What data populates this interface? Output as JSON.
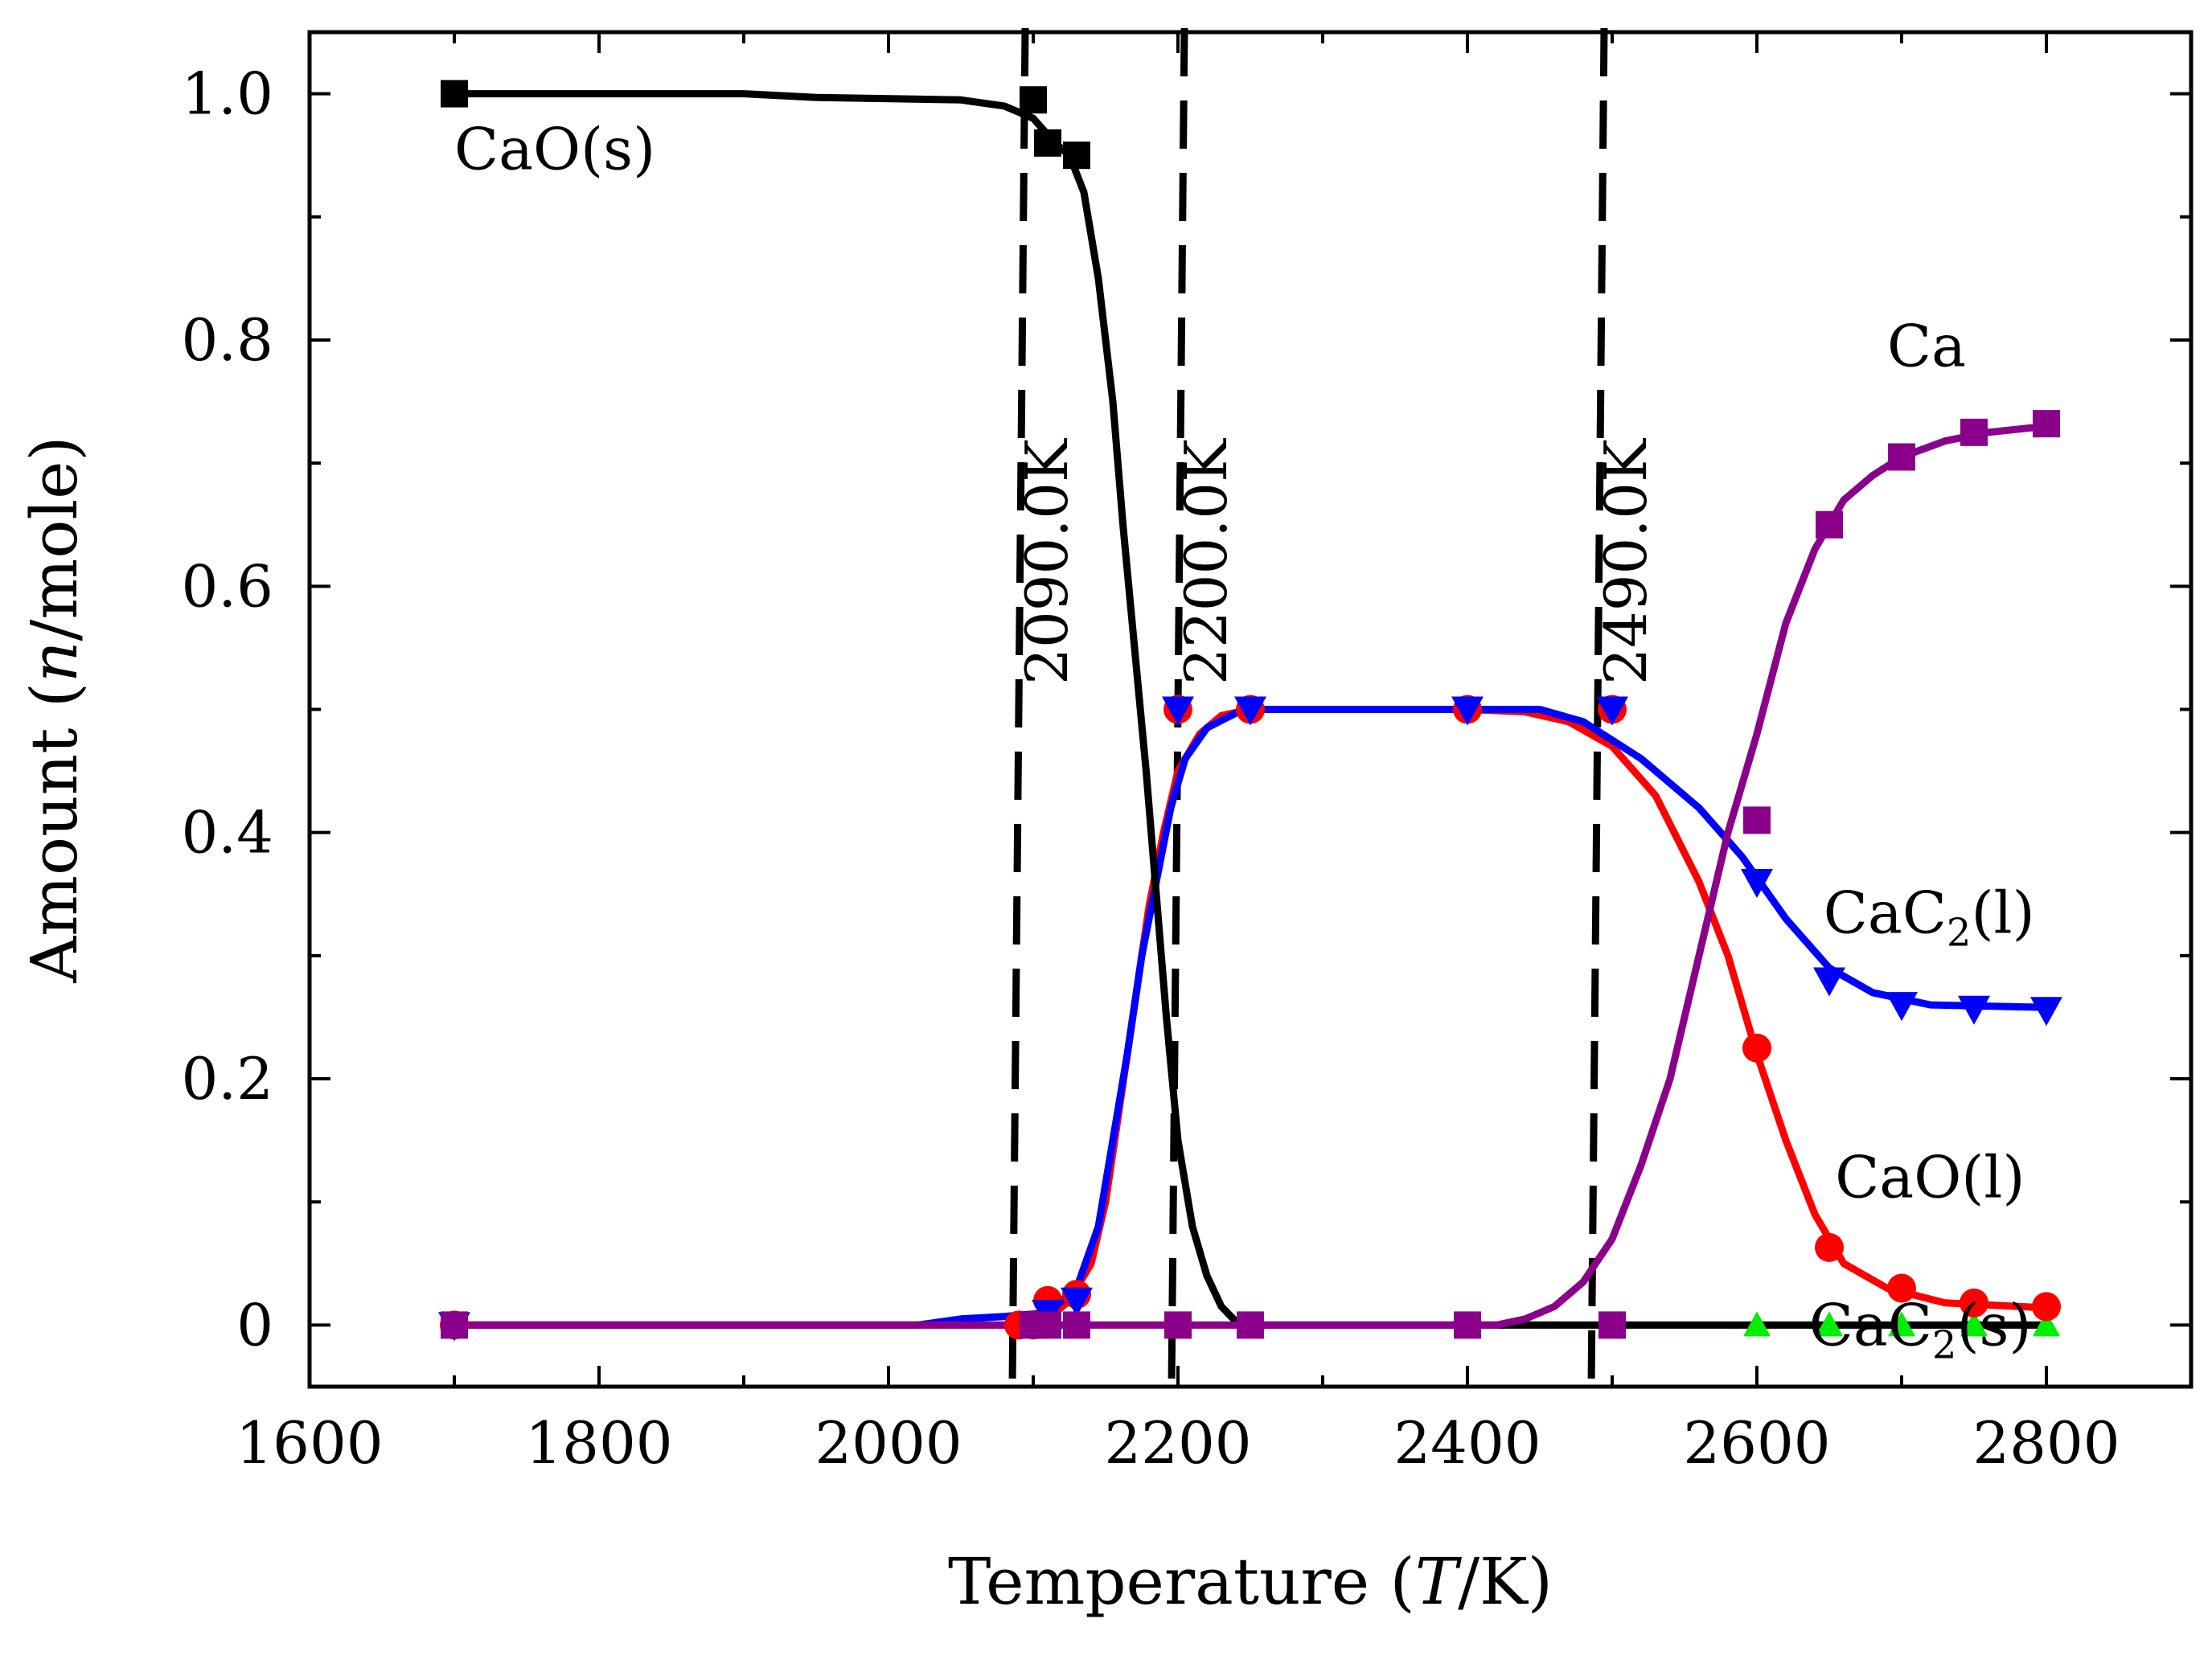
{
  "chart_data": {
    "type": "line",
    "title": "",
    "xlabel": {
      "prefix": "Temperature (",
      "italic": "T",
      "suffix": "/K)"
    },
    "ylabel": {
      "prefix": "Amount (",
      "italic": "n",
      "suffix": "/mole)"
    },
    "xlim": [
      1600,
      2900
    ],
    "ylim": [
      -0.05,
      1.05
    ],
    "x_ticks": [
      1600,
      1800,
      2000,
      2200,
      2400,
      2600,
      2800
    ],
    "x_tick_labels": [
      "1600",
      "1800",
      "2000",
      "2200",
      "2400",
      "2600",
      "2800"
    ],
    "y_ticks": [
      0,
      0.2,
      0.4,
      0.6,
      0.8,
      1.0
    ],
    "y_tick_labels": [
      "0",
      "0.2",
      "0.4",
      "0.6",
      "0.8",
      "1.0"
    ],
    "grid": false,
    "vertical_lines": [
      {
        "x": 2090,
        "label": "2090.0K"
      },
      {
        "x": 2200,
        "label": "2200.0K"
      },
      {
        "x": 2490,
        "label": "2490.0K"
      }
    ],
    "series": [
      {
        "name": "CaO(s)",
        "label": "CaO(s)",
        "color": "#000000",
        "marker": "square",
        "curve": [
          [
            1700,
            1.0
          ],
          [
            1900,
            1.0
          ],
          [
            1950,
            0.997
          ],
          [
            2050,
            0.995
          ],
          [
            2080,
            0.99
          ],
          [
            2100,
            0.98
          ],
          [
            2115,
            0.96
          ],
          [
            2125,
            0.95
          ],
          [
            2135,
            0.92
          ],
          [
            2145,
            0.85
          ],
          [
            2155,
            0.75
          ],
          [
            2162,
            0.65
          ],
          [
            2170,
            0.55
          ],
          [
            2178,
            0.45
          ],
          [
            2185,
            0.35
          ],
          [
            2192,
            0.25
          ],
          [
            2200,
            0.15
          ],
          [
            2210,
            0.08
          ],
          [
            2220,
            0.04
          ],
          [
            2230,
            0.015
          ],
          [
            2240,
            0.003
          ],
          [
            2250,
            0.0
          ],
          [
            2800,
            0.0
          ]
        ],
        "markers": [
          [
            1700,
            1.0
          ],
          [
            2100,
            0.995
          ],
          [
            2110,
            0.96
          ],
          [
            2130,
            0.95
          ]
        ]
      },
      {
        "name": "CaO(l)",
        "label": "CaO(l)",
        "color": "#ff0000",
        "marker": "circle",
        "curve": [
          [
            1700,
            0.0
          ],
          [
            2080,
            0.0
          ],
          [
            2110,
            0.005
          ],
          [
            2125,
            0.02
          ],
          [
            2140,
            0.05
          ],
          [
            2150,
            0.1
          ],
          [
            2160,
            0.18
          ],
          [
            2170,
            0.26
          ],
          [
            2180,
            0.34
          ],
          [
            2190,
            0.4
          ],
          [
            2200,
            0.45
          ],
          [
            2215,
            0.48
          ],
          [
            2230,
            0.495
          ],
          [
            2250,
            0.5
          ],
          [
            2400,
            0.5
          ],
          [
            2440,
            0.498
          ],
          [
            2470,
            0.49
          ],
          [
            2500,
            0.47
          ],
          [
            2530,
            0.43
          ],
          [
            2560,
            0.36
          ],
          [
            2580,
            0.3
          ],
          [
            2600,
            0.22
          ],
          [
            2620,
            0.15
          ],
          [
            2640,
            0.09
          ],
          [
            2660,
            0.05
          ],
          [
            2690,
            0.03
          ],
          [
            2730,
            0.018
          ],
          [
            2800,
            0.014
          ]
        ],
        "markers": [
          [
            1700,
            0.0
          ],
          [
            2090,
            0.0
          ],
          [
            2100,
            0.0
          ],
          [
            2110,
            0.02
          ],
          [
            2130,
            0.025
          ],
          [
            2200,
            0.5
          ],
          [
            2250,
            0.5
          ],
          [
            2400,
            0.5
          ],
          [
            2500,
            0.5
          ],
          [
            2600,
            0.225
          ],
          [
            2650,
            0.063
          ],
          [
            2700,
            0.03
          ],
          [
            2750,
            0.018
          ],
          [
            2800,
            0.015
          ]
        ]
      },
      {
        "name": "CaC2(l)",
        "label": "CaC",
        "label_sub": "2",
        "label_suffix": "(l)",
        "color": "#0000ff",
        "marker": "triangle-down",
        "curve": [
          [
            1700,
            0.0
          ],
          [
            2020,
            0.0
          ],
          [
            2050,
            0.005
          ],
          [
            2080,
            0.007
          ],
          [
            2110,
            0.01
          ],
          [
            2130,
            0.03
          ],
          [
            2145,
            0.08
          ],
          [
            2155,
            0.15
          ],
          [
            2165,
            0.22
          ],
          [
            2175,
            0.3
          ],
          [
            2185,
            0.36
          ],
          [
            2195,
            0.42
          ],
          [
            2205,
            0.46
          ],
          [
            2220,
            0.485
          ],
          [
            2240,
            0.497
          ],
          [
            2260,
            0.5
          ],
          [
            2450,
            0.5
          ],
          [
            2480,
            0.49
          ],
          [
            2520,
            0.46
          ],
          [
            2560,
            0.42
          ],
          [
            2590,
            0.38
          ],
          [
            2620,
            0.33
          ],
          [
            2650,
            0.29
          ],
          [
            2680,
            0.27
          ],
          [
            2720,
            0.26
          ],
          [
            2800,
            0.258
          ]
        ],
        "markers": [
          [
            1700,
            0.0
          ],
          [
            2110,
            0.01
          ],
          [
            2130,
            0.02
          ],
          [
            2200,
            0.5
          ],
          [
            2250,
            0.5
          ],
          [
            2400,
            0.5
          ],
          [
            2500,
            0.5
          ],
          [
            2600,
            0.36
          ],
          [
            2650,
            0.28
          ],
          [
            2700,
            0.26
          ],
          [
            2750,
            0.257
          ],
          [
            2800,
            0.256
          ]
        ]
      },
      {
        "name": "CaC2(s)",
        "label": "CaC",
        "label_sub": "2",
        "label_suffix": "(s)",
        "color": "#00ee00",
        "marker": "triangle-up",
        "curve": [
          [
            1700,
            0.0
          ],
          [
            2800,
            0.0
          ]
        ],
        "markers": [
          [
            1700,
            0.0
          ],
          [
            2200,
            0.0
          ],
          [
            2250,
            0.0
          ],
          [
            2400,
            0.0
          ],
          [
            2500,
            0.0
          ],
          [
            2600,
            0.0
          ],
          [
            2650,
            0.0
          ],
          [
            2700,
            0.0
          ],
          [
            2750,
            0.0
          ],
          [
            2800,
            0.0
          ]
        ]
      },
      {
        "name": "Ca",
        "label": "Ca",
        "color": "#8b008b",
        "marker": "square",
        "curve": [
          [
            1700,
            0.0
          ],
          [
            2420,
            0.0
          ],
          [
            2440,
            0.005
          ],
          [
            2460,
            0.015
          ],
          [
            2480,
            0.035
          ],
          [
            2500,
            0.07
          ],
          [
            2520,
            0.13
          ],
          [
            2540,
            0.2
          ],
          [
            2560,
            0.3
          ],
          [
            2580,
            0.4
          ],
          [
            2600,
            0.48
          ],
          [
            2620,
            0.57
          ],
          [
            2640,
            0.63
          ],
          [
            2660,
            0.67
          ],
          [
            2680,
            0.69
          ],
          [
            2700,
            0.705
          ],
          [
            2730,
            0.718
          ],
          [
            2760,
            0.725
          ],
          [
            2800,
            0.73
          ]
        ],
        "markers": [
          [
            1700,
            0.0
          ],
          [
            2100,
            0.0
          ],
          [
            2110,
            0.0
          ],
          [
            2130,
            0.0
          ],
          [
            2200,
            0.0
          ],
          [
            2250,
            0.0
          ],
          [
            2400,
            0.0
          ],
          [
            2500,
            0.0
          ],
          [
            2600,
            0.41
          ],
          [
            2650,
            0.65
          ],
          [
            2700,
            0.705
          ],
          [
            2750,
            0.725
          ],
          [
            2800,
            0.732
          ]
        ]
      }
    ]
  }
}
